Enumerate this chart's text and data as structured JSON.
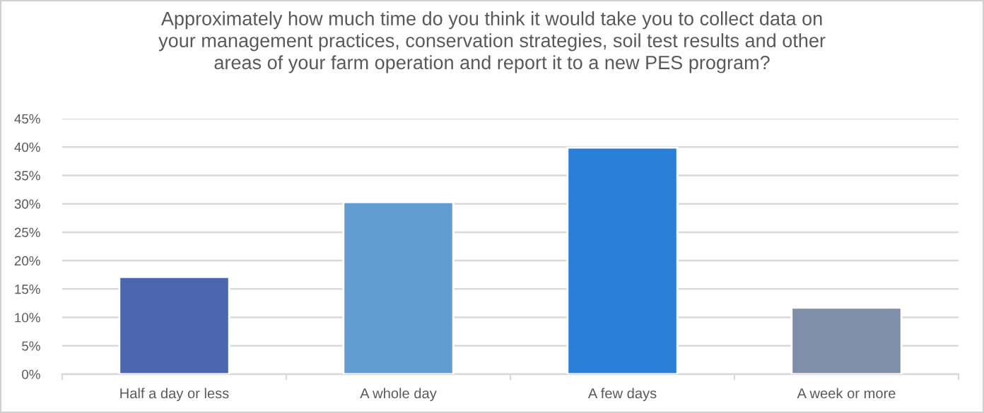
{
  "chart_data": {
    "type": "bar",
    "title": "Approximately how much time do you think it would take you to collect data on\nyour management practices, conservation strategies, soil test results and other\nareas of your farm operation and report it to a new PES program?",
    "categories": [
      "Half a day or less",
      "A whole day",
      "A few days",
      "A week or more"
    ],
    "values": [
      17.1,
      30.3,
      39.9,
      11.7
    ],
    "colors": [
      "#4a67ad",
      "#629dd1",
      "#297fd5",
      "#7f8fa9"
    ],
    "ylim": [
      0,
      45
    ],
    "yticks": [
      {
        "value": 0,
        "label": "0%"
      },
      {
        "value": 5,
        "label": "5%"
      },
      {
        "value": 10,
        "label": "10%"
      },
      {
        "value": 15,
        "label": "15%"
      },
      {
        "value": 20,
        "label": "20%"
      },
      {
        "value": 25,
        "label": "25%"
      },
      {
        "value": 30,
        "label": "30%"
      },
      {
        "value": 35,
        "label": "35%"
      },
      {
        "value": 40,
        "label": "40%"
      },
      {
        "value": 45,
        "label": "45%"
      }
    ],
    "grid": "y",
    "legend": false
  }
}
